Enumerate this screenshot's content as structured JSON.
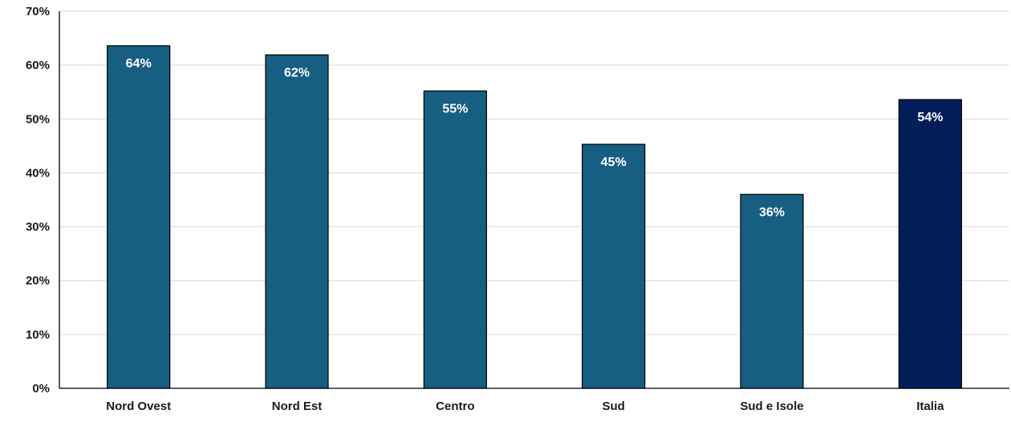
{
  "chart_data": {
    "type": "bar",
    "categories": [
      "Nord Ovest",
      "Nord Est",
      "Centro",
      "Sud",
      "Sud e Isole",
      "Italia"
    ],
    "values": [
      63.6,
      61.9,
      55.2,
      45.3,
      36.0,
      53.6
    ],
    "data_labels": [
      "64%",
      "62%",
      "55%",
      "45%",
      "36%",
      "54%"
    ],
    "ylim": [
      0,
      70
    ],
    "yticks": [
      0,
      10,
      20,
      30,
      40,
      50,
      60,
      70
    ],
    "ytick_labels": [
      "0%",
      "10%",
      "20%",
      "30%",
      "40%",
      "50%",
      "60%",
      "70%"
    ],
    "grid": true,
    "legend": "none",
    "colors": {
      "default_bar": "#165e82",
      "highlight_bar": "#021e5a",
      "highlight_category": "Italia",
      "grid": "#d9d9d9",
      "data_label": "#ffffff"
    }
  }
}
